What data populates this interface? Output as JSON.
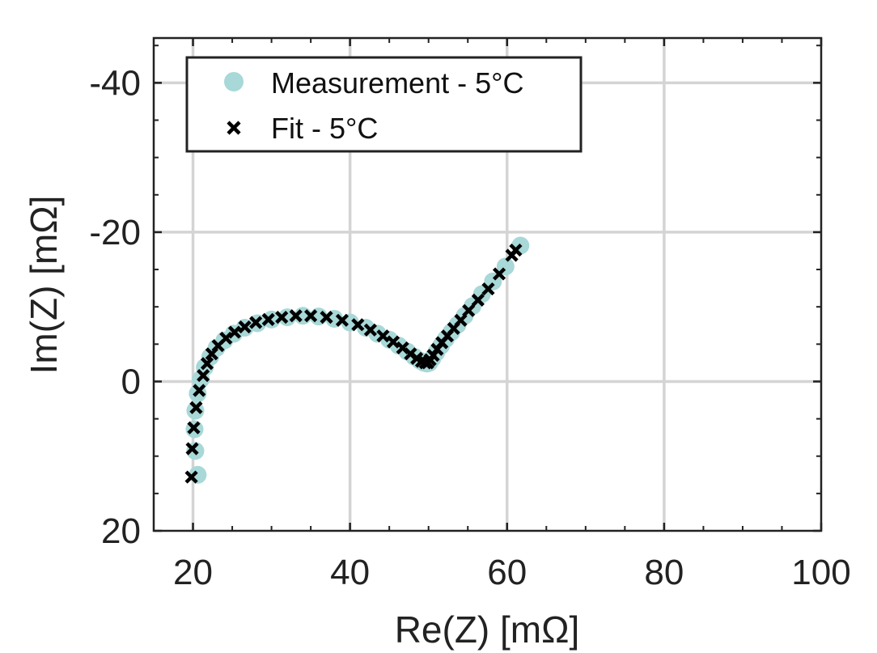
{
  "chart_data": {
    "type": "scatter",
    "xlabel": "Re(Z) [mΩ]",
    "ylabel": "Im(Z) [mΩ]",
    "xlim": [
      15,
      100
    ],
    "ylim": [
      20,
      -46
    ],
    "y_reversed": true,
    "grid": true,
    "legend_position": "top-left",
    "x_ticks": [
      20,
      40,
      60,
      80,
      100
    ],
    "y_ticks": [
      -40,
      -20,
      0,
      20
    ],
    "x_tick_labels": [
      "20",
      "40",
      "60",
      "80",
      "100"
    ],
    "y_tick_labels": [
      "-40",
      "-20",
      "0",
      "20"
    ],
    "series": [
      {
        "name": "Measurement - 5°C",
        "marker": "circle",
        "color": "#a8d8d8",
        "x": [
          20.6,
          20.3,
          20.2,
          20.3,
          20.6,
          21.0,
          21.5,
          22.2,
          23.0,
          24.0,
          25.2,
          26.6,
          28.2,
          30.0,
          32.0,
          34.0,
          36.0,
          38.0,
          40.0,
          42.0,
          43.5,
          45.0,
          46.2,
          47.3,
          48.2,
          48.9,
          49.4,
          49.8,
          50.1,
          50.5,
          51.0,
          51.6,
          52.2,
          52.9,
          53.7,
          54.6,
          55.6,
          56.8,
          58.2,
          59.8,
          61.7
        ],
        "y": [
          12.5,
          9.3,
          6.4,
          3.9,
          1.6,
          -0.3,
          -1.9,
          -3.3,
          -4.5,
          -5.5,
          -6.4,
          -7.2,
          -7.8,
          -8.3,
          -8.6,
          -8.8,
          -8.7,
          -8.4,
          -7.9,
          -7.2,
          -6.4,
          -5.6,
          -4.8,
          -4.0,
          -3.3,
          -2.8,
          -2.5,
          -2.4,
          -2.5,
          -3.1,
          -3.9,
          -4.8,
          -5.7,
          -6.6,
          -7.6,
          -8.8,
          -10.1,
          -11.7,
          -13.4,
          -15.4,
          -18.2
        ]
      },
      {
        "name": "Fit - 5°C",
        "marker": "x",
        "color": "#000000",
        "x": [
          19.8,
          19.9,
          20.1,
          20.4,
          20.8,
          21.3,
          21.8,
          22.4,
          23.2,
          24.2,
          25.3,
          26.6,
          28.0,
          29.6,
          31.3,
          33.1,
          35.0,
          37.0,
          39.0,
          41.0,
          42.6,
          44.2,
          45.5,
          46.7,
          47.7,
          48.5,
          49.1,
          49.6,
          49.9,
          50.2,
          50.6,
          51.1,
          51.7,
          52.4,
          53.2,
          54.1,
          55.1,
          56.3,
          57.6,
          59.0,
          60.6,
          61.1
        ],
        "y": [
          12.8,
          9.0,
          6.2,
          3.5,
          1.2,
          -0.8,
          -2.4,
          -3.7,
          -4.8,
          -5.8,
          -6.6,
          -7.3,
          -7.9,
          -8.3,
          -8.6,
          -8.8,
          -8.8,
          -8.6,
          -8.2,
          -7.6,
          -6.9,
          -6.1,
          -5.3,
          -4.5,
          -3.7,
          -3.1,
          -2.7,
          -2.5,
          -2.5,
          -2.9,
          -3.5,
          -4.3,
          -5.2,
          -6.1,
          -7.1,
          -8.2,
          -9.5,
          -10.9,
          -12.4,
          -14.4,
          -16.9,
          -17.6
        ]
      }
    ]
  }
}
